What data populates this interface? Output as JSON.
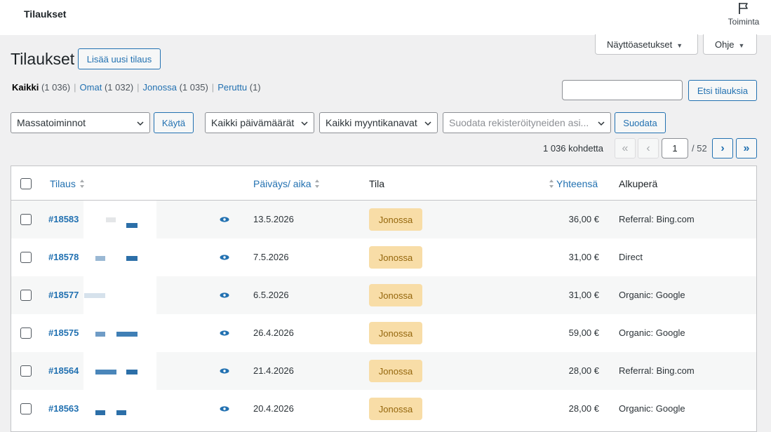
{
  "topbar": {
    "title": "Tilaukset",
    "activity_label": "Toiminta"
  },
  "screen_options": {
    "label": "Näyttöasetukset",
    "help_label": "Ohje"
  },
  "page": {
    "heading": "Tilaukset",
    "add_new": "Lisää uusi tilaus"
  },
  "views": [
    {
      "label": "Kaikki",
      "count": "(1 036)",
      "current": true
    },
    {
      "label": "Omat",
      "count": "(1 032)"
    },
    {
      "label": "Jonossa",
      "count": "(1 035)"
    },
    {
      "label": "Peruttu",
      "count": "(1)"
    }
  ],
  "search": {
    "button": "Etsi tilauksia",
    "value": ""
  },
  "filters": {
    "bulk_actions": "Massatoiminnot",
    "apply": "Käytä",
    "dates": "Kaikki päivämäärät",
    "channels": "Kaikki myyntikanavat",
    "customer_placeholder": "Suodata rekisteröityneiden asi...",
    "filter_button": "Suodata"
  },
  "pagination": {
    "items": "1 036 kohdetta",
    "first": "«",
    "prev": "‹",
    "next": "›",
    "last": "»",
    "current_page": "1",
    "total_pages": "/ 52"
  },
  "table": {
    "columns": {
      "order": "Tilaus",
      "date": "Päiväys/ aika",
      "status": "Tila",
      "total": "Yhteensä",
      "origin": "Alkuperä"
    },
    "rows": [
      {
        "order": "#18583",
        "date": "13.5.2026",
        "status": "Jonossa",
        "total": "36,00 €",
        "origin": "Referral: Bing.com"
      },
      {
        "order": "#18578",
        "date": "7.5.2026",
        "status": "Jonossa",
        "total": "31,00 €",
        "origin": "Direct"
      },
      {
        "order": "#18577",
        "date": "6.5.2026",
        "status": "Jonossa",
        "total": "31,00 €",
        "origin": "Organic: Google"
      },
      {
        "order": "#18575",
        "date": "26.4.2026",
        "status": "Jonossa",
        "total": "59,00 €",
        "origin": "Organic: Google"
      },
      {
        "order": "#18564",
        "date": "21.4.2026",
        "status": "Jonossa",
        "total": "28,00 €",
        "origin": "Referral: Bing.com"
      },
      {
        "order": "#18563",
        "date": "20.4.2026",
        "status": "Jonossa",
        "total": "28,00 €",
        "origin": "Organic: Google"
      }
    ]
  },
  "colors": {
    "accent": "#2271b1",
    "status_bg": "#f8dda7",
    "status_text": "#94660c"
  }
}
